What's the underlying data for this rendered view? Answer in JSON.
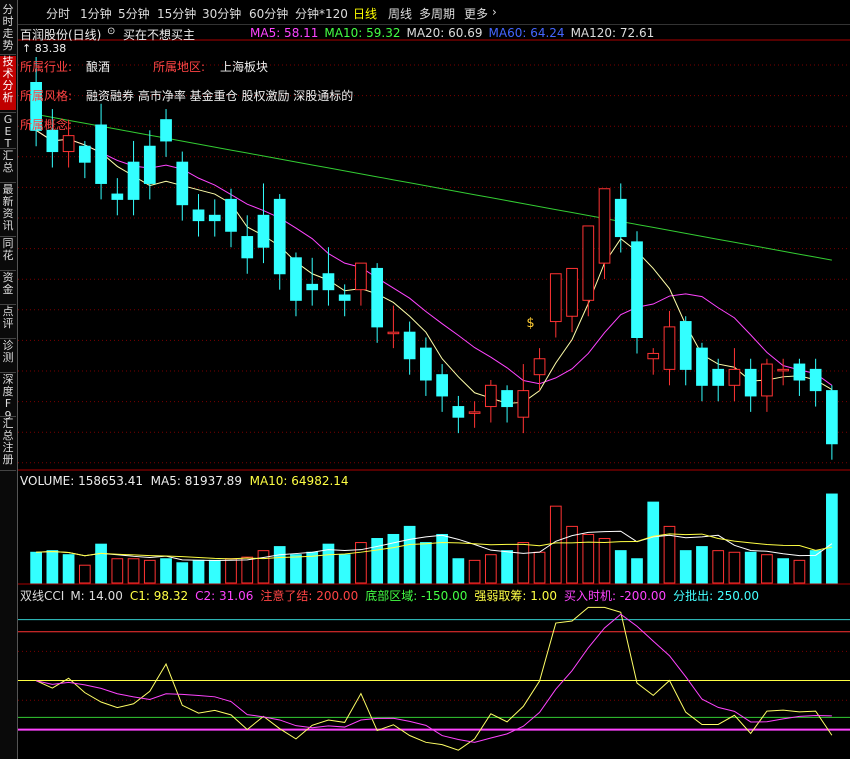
{
  "sidebar": {
    "tabs": [
      {
        "label": "分时走势",
        "active": false
      },
      {
        "label": "技术分析",
        "active": true
      },
      {
        "label": "GET",
        "active": false
      },
      {
        "label": "汇总",
        "active": false
      },
      {
        "label": "最新资讯",
        "active": false
      },
      {
        "label": "同花",
        "active": false
      },
      {
        "label": "资金",
        "active": false
      },
      {
        "label": "点评",
        "active": false
      },
      {
        "label": "诊测",
        "active": false
      },
      {
        "label": "深度F9",
        "active": false
      },
      {
        "label": "汇总注册",
        "active": false
      }
    ]
  },
  "toolbar": {
    "items": [
      {
        "label": "分时",
        "active": false
      },
      {
        "label": "1分钟",
        "active": false
      },
      {
        "label": "5分钟",
        "active": false
      },
      {
        "label": "15分钟",
        "active": false
      },
      {
        "label": "30分钟",
        "active": false
      },
      {
        "label": "60分钟",
        "active": false
      },
      {
        "label": "分钟*120",
        "active": false
      },
      {
        "label": "日线",
        "active": true
      },
      {
        "label": "周线",
        "active": false
      },
      {
        "label": "多周期",
        "active": false
      },
      {
        "label": "更多",
        "active": false
      }
    ],
    "more_icon": "chevron-right-icon"
  },
  "kline": {
    "stock_title": "百润股份(日线)",
    "dropdown_icon": "chevron-down-icon",
    "signal": "买在不想买主",
    "ma": [
      {
        "label": "MA5: 58.11",
        "color": "#ff44ff"
      },
      {
        "label": "MA10: 59.32",
        "color": "#44ff44"
      },
      {
        "label": "MA20: 60.69",
        "color": "#dddddd"
      },
      {
        "label": "MA60: 64.24",
        "color": "#4466ff"
      },
      {
        "label": "MA120: 72.61",
        "color": "#dddddd"
      }
    ],
    "high_price": "83.38",
    "industry_label": "所属行业:",
    "industry_value": "酿酒",
    "region_label": "所属地区:",
    "region_value": "上海板块",
    "style_label": "所属风格:",
    "style_value": "融资融券 高市净率 基金重仓 股权激励 深股通标的",
    "concept_label": "所属概念:",
    "money_icon": "money-bag-icon"
  },
  "volume": {
    "title": "VOLUME: 158653.41",
    "ma5": "MA5: 81937.89",
    "ma10": "MA10: 64982.14"
  },
  "cci": {
    "name": "双线CCI",
    "params": [
      {
        "label": "M: 14.00",
        "color": "#dddddd"
      },
      {
        "label": "C1: 98.32",
        "color": "#ffff44"
      },
      {
        "label": "C2: 31.06",
        "color": "#ff44ff"
      },
      {
        "label": "注意了结: 200.00",
        "color": "#ff4444"
      },
      {
        "label": "底部区域: -150.00",
        "color": "#44ff44"
      },
      {
        "label": "强弱取筹: 1.00",
        "color": "#ffff44"
      },
      {
        "label": "买入时机: -200.00",
        "color": "#ff44ff"
      },
      {
        "label": "分批出: 250.00",
        "color": "#44ffff"
      }
    ]
  },
  "colors": {
    "up": "#ff3333",
    "down": "#33ffff",
    "ma5_line": "#ffffaa",
    "ma10_line": "#ff44ff",
    "ma20_line": "#33cc33",
    "grid": "#7a0000"
  },
  "chart_data": {
    "type": "candlestick",
    "candles": [
      {
        "o": 81.0,
        "h": 83.4,
        "c": 76.5
      },
      {
        "o": 76.5,
        "h": 78.5,
        "c": 74.5
      },
      {
        "o": 74.5,
        "h": 77.5,
        "c": 76.0
      },
      {
        "o": 75.0,
        "h": 75.5,
        "c": 73.5
      },
      {
        "o": 77.0,
        "h": 79.0,
        "c": 71.5
      },
      {
        "o": 70.5,
        "h": 72.0,
        "c": 70.0
      },
      {
        "o": 73.5,
        "h": 75.5,
        "c": 70.0
      },
      {
        "o": 75.0,
        "h": 76.5,
        "c": 71.5
      },
      {
        "o": 77.5,
        "h": 78.5,
        "c": 75.5
      },
      {
        "o": 73.5,
        "h": 74.5,
        "c": 69.5
      },
      {
        "o": 69.0,
        "h": 70.5,
        "c": 68.0
      },
      {
        "o": 68.5,
        "h": 70.0,
        "c": 68.0
      },
      {
        "o": 70.0,
        "h": 71.0,
        "c": 67.0
      },
      {
        "o": 66.5,
        "h": 68.5,
        "c": 64.5
      },
      {
        "o": 68.5,
        "h": 71.5,
        "c": 65.5
      },
      {
        "o": 70.0,
        "h": 70.5,
        "c": 63.0
      },
      {
        "o": 64.5,
        "h": 65.0,
        "c": 60.5
      },
      {
        "o": 62.0,
        "h": 64.5,
        "c": 61.5
      },
      {
        "o": 63.0,
        "h": 65.5,
        "c": 61.5
      },
      {
        "o": 61.0,
        "h": 62.0,
        "c": 60.5
      },
      {
        "o": 61.5,
        "h": 64.0,
        "c": 64.0
      },
      {
        "o": 63.5,
        "h": 64.0,
        "c": 58.0
      },
      {
        "o": 57.5,
        "h": 60.0,
        "c": 57.5
      },
      {
        "o": 57.5,
        "h": 58.5,
        "c": 55.0
      },
      {
        "o": 56.0,
        "h": 57.0,
        "c": 53.0
      },
      {
        "o": 53.5,
        "h": 54.5,
        "c": 51.5
      },
      {
        "o": 50.5,
        "h": 51.5,
        "c": 49.5
      },
      {
        "o": 50.0,
        "h": 51.0,
        "c": 50.0
      },
      {
        "o": 50.5,
        "h": 53.0,
        "c": 52.5
      },
      {
        "o": 52.0,
        "h": 52.5,
        "c": 50.5
      },
      {
        "o": 49.5,
        "h": 54.5,
        "c": 52.0
      },
      {
        "o": 53.5,
        "h": 56.0,
        "c": 55.0
      },
      {
        "o": 58.5,
        "h": 62.5,
        "c": 63.0
      },
      {
        "o": 59.0,
        "h": 63.5,
        "c": 63.5
      },
      {
        "o": 60.5,
        "h": 65.0,
        "c": 67.5
      },
      {
        "o": 64.0,
        "h": 71.0,
        "c": 71.0
      },
      {
        "o": 70.0,
        "h": 71.5,
        "c": 66.5
      },
      {
        "o": 66.0,
        "h": 67.0,
        "c": 57.0
      },
      {
        "o": 55.0,
        "h": 56.0,
        "c": 55.5
      },
      {
        "o": 54.0,
        "h": 59.5,
        "c": 58.0
      },
      {
        "o": 58.5,
        "h": 59.0,
        "c": 54.0
      },
      {
        "o": 56.0,
        "h": 56.5,
        "c": 52.5
      },
      {
        "o": 54.0,
        "h": 55.0,
        "c": 52.5
      },
      {
        "o": 52.5,
        "h": 56.0,
        "c": 54.0
      },
      {
        "o": 54.0,
        "h": 55.0,
        "c": 51.5
      },
      {
        "o": 51.5,
        "h": 55.0,
        "c": 54.5
      },
      {
        "o": 54.0,
        "h": 55.0,
        "c": 54.0
      },
      {
        "o": 54.5,
        "h": 55.0,
        "c": 53.0
      },
      {
        "o": 54.0,
        "h": 55.0,
        "c": 52.0
      },
      {
        "o": 52.0,
        "h": 52.5,
        "c": 47.0
      }
    ],
    "ylim": [
      45,
      85
    ],
    "volumes": [
      38,
      40,
      35,
      22,
      48,
      30,
      30,
      28,
      30,
      25,
      28,
      28,
      30,
      32,
      40,
      45,
      35,
      38,
      48,
      35,
      50,
      55,
      60,
      70,
      50,
      60,
      30,
      28,
      35,
      40,
      50,
      38,
      95,
      70,
      60,
      55,
      40,
      30,
      100,
      70,
      40,
      45,
      40,
      38,
      38,
      35,
      30,
      28,
      40,
      110
    ],
    "volume_up": [
      false,
      false,
      false,
      true,
      false,
      true,
      true,
      true,
      false,
      false,
      false,
      false,
      true,
      true,
      true,
      false,
      false,
      false,
      false,
      false,
      true,
      false,
      false,
      false,
      false,
      false,
      false,
      true,
      true,
      false,
      true,
      true,
      true,
      true,
      true,
      true,
      false,
      false,
      false,
      true,
      false,
      false,
      true,
      true,
      false,
      true,
      false,
      true,
      false,
      false
    ],
    "cci_ylim": [
      -320,
      330
    ]
  }
}
